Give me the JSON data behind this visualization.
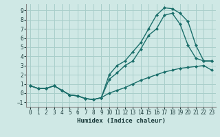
{
  "xlabel": "Humidex (Indice chaleur)",
  "bg_color": "#cfe8e5",
  "grid_color": "#a8ceca",
  "line_color": "#1a6e6a",
  "xlim": [
    -0.5,
    23.5
  ],
  "ylim": [
    -1.5,
    9.7
  ],
  "xticks": [
    0,
    1,
    2,
    3,
    4,
    5,
    6,
    7,
    8,
    9,
    10,
    11,
    12,
    13,
    14,
    15,
    16,
    17,
    18,
    19,
    20,
    21,
    22,
    23
  ],
  "yticks": [
    -1,
    0,
    1,
    2,
    3,
    4,
    5,
    6,
    7,
    8,
    9
  ],
  "line1_x": [
    0,
    1,
    2,
    3,
    4,
    5,
    6,
    7,
    8,
    9,
    10,
    11,
    12,
    13,
    14,
    15,
    16,
    17,
    18,
    19,
    20,
    21,
    22,
    23
  ],
  "line1_y": [
    0.8,
    0.5,
    0.5,
    0.8,
    0.3,
    -0.2,
    -0.3,
    -0.6,
    -0.7,
    -0.5,
    0.0,
    0.3,
    0.6,
    1.0,
    1.4,
    1.7,
    2.0,
    2.3,
    2.5,
    2.7,
    2.8,
    2.9,
    3.0,
    2.5
  ],
  "line2_x": [
    0,
    1,
    2,
    3,
    4,
    5,
    6,
    7,
    8,
    9,
    10,
    11,
    12,
    13,
    14,
    15,
    16,
    17,
    18,
    19,
    20,
    21,
    22,
    23
  ],
  "line2_y": [
    0.8,
    0.5,
    0.5,
    0.8,
    0.3,
    -0.2,
    -0.3,
    -0.6,
    -0.7,
    -0.5,
    1.5,
    2.2,
    3.0,
    3.5,
    4.8,
    6.3,
    7.0,
    8.5,
    8.7,
    7.5,
    5.2,
    3.8,
    3.5,
    3.5
  ],
  "line3_x": [
    0,
    1,
    2,
    3,
    4,
    5,
    6,
    7,
    8,
    9,
    10,
    11,
    12,
    13,
    14,
    15,
    16,
    17,
    18,
    19,
    20,
    21,
    22,
    23
  ],
  "line3_y": [
    0.8,
    0.5,
    0.5,
    0.8,
    0.3,
    -0.2,
    -0.3,
    -0.6,
    -0.7,
    -0.5,
    2.0,
    3.0,
    3.5,
    4.5,
    5.5,
    7.0,
    8.5,
    9.3,
    9.2,
    8.7,
    7.8,
    5.2,
    3.5,
    3.5
  ]
}
